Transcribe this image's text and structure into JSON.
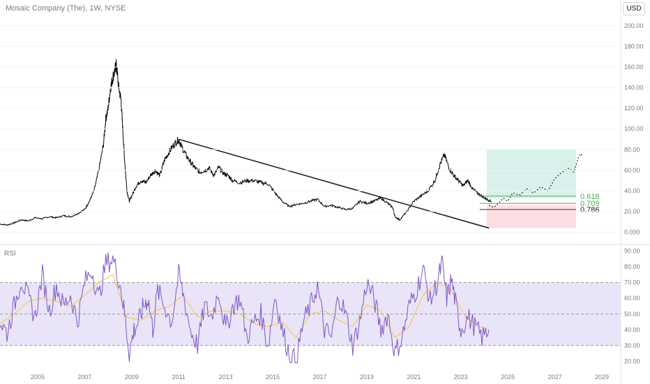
{
  "header": {
    "title": "Mosaic Company (The), 1W, NYSE",
    "currency_button": "USD"
  },
  "rsi_panel": {
    "label": "RSI"
  },
  "fib_labels": [
    "0.618",
    "0.709",
    "0.786"
  ],
  "colors": {
    "price_line": "#000000",
    "trend_line": "#222222",
    "rsi_line": "#7e57c2",
    "rsi_ma": "#f5c542",
    "rsi_band": "#e9e4f7",
    "target_zone": "#d8f1ea",
    "stop_zone": "#fbdde2",
    "fib_line": "#4caf50",
    "fib_text": "#4caf50"
  },
  "chart_data": [
    {
      "type": "line",
      "title": "Mosaic Company (The), 1W, NYSE",
      "x_tick_labels": [
        "2005",
        "2007",
        "2009",
        "2011",
        "2013",
        "2015",
        "2017",
        "2019",
        "2021",
        "2023",
        "2025",
        "2027",
        "2029"
      ],
      "y_tick_labels": [
        "0.000",
        "20.00",
        "40.00",
        "60.00",
        "80.00",
        "100.00",
        "120.00",
        "140.00",
        "160.00",
        "180.00",
        "200.00"
      ],
      "xlim": [
        2003.4,
        2029.8
      ],
      "ylim": [
        -5,
        208
      ],
      "series": [
        {
          "x": [
            2003.4,
            2003.7,
            2004.0,
            2004.3,
            2004.6,
            2004.9,
            2005.2,
            2005.5,
            2005.8,
            2006.1,
            2006.4,
            2006.7,
            2007.0,
            2007.2,
            2007.4,
            2007.6,
            2007.8,
            2007.9,
            2008.0,
            2008.1,
            2008.2,
            2008.3,
            2008.35,
            2008.45,
            2008.55,
            2008.62,
            2008.7,
            2008.8,
            2008.9,
            2009.0,
            2009.2,
            2009.4,
            2009.6,
            2009.8,
            2010.0,
            2010.2,
            2010.4,
            2010.6,
            2010.8,
            2011.0,
            2011.1,
            2011.3,
            2011.5,
            2011.7,
            2011.9,
            2012.1,
            2012.3,
            2012.5,
            2012.7,
            2012.9,
            2013.1,
            2013.3,
            2013.6,
            2013.9,
            2014.2,
            2014.5,
            2014.8,
            2015.1,
            2015.4,
            2015.7,
            2016.0,
            2016.3,
            2016.6,
            2016.9,
            2017.2,
            2017.5,
            2017.8,
            2018.1,
            2018.4,
            2018.7,
            2019.0,
            2019.3,
            2019.6,
            2019.9,
            2020.1,
            2020.2,
            2020.4,
            2020.7,
            2021.0,
            2021.3,
            2021.6,
            2021.9,
            2022.1,
            2022.3,
            2022.5,
            2022.7,
            2022.9,
            2023.1,
            2023.3,
            2023.5,
            2023.7,
            2023.9,
            2024.1,
            2024.3
          ],
          "y": [
            8,
            7,
            9,
            12,
            11,
            14,
            13,
            15,
            14,
            16,
            15,
            18,
            22,
            30,
            40,
            60,
            85,
            110,
            120,
            140,
            150,
            158,
            162,
            140,
            128,
            100,
            70,
            40,
            30,
            35,
            45,
            50,
            48,
            55,
            60,
            55,
            70,
            78,
            85,
            90,
            84,
            75,
            68,
            62,
            58,
            60,
            62,
            55,
            63,
            57,
            55,
            50,
            48,
            50,
            50,
            48,
            47,
            38,
            30,
            25,
            27,
            28,
            30,
            32,
            25,
            26,
            24,
            22,
            23,
            30,
            28,
            30,
            33,
            28,
            24,
            15,
            12,
            20,
            30,
            35,
            40,
            50,
            65,
            75,
            62,
            55,
            50,
            45,
            50,
            42,
            38,
            35,
            32,
            30
          ]
        }
      ],
      "annotations": {
        "trendline": {
          "x": [
            2011.0,
            2024.2
          ],
          "y": [
            90,
            4
          ]
        },
        "projection": {
          "x": [
            2024.2,
            2024.4,
            2024.6,
            2024.8,
            2025.0,
            2025.2,
            2025.5,
            2025.8,
            2026.1,
            2026.4,
            2026.7,
            2027.0,
            2027.3,
            2027.6,
            2027.8,
            2028.0,
            2028.1,
            2028.2
          ],
          "y": [
            26,
            24,
            28,
            33,
            30,
            38,
            36,
            42,
            38,
            44,
            40,
            52,
            58,
            62,
            58,
            72,
            76,
            74
          ]
        },
        "target_zone": {
          "x": [
            2024.1,
            2027.9
          ],
          "y": [
            33,
            80
          ]
        },
        "stop_zone": {
          "x": [
            2024.1,
            2027.9
          ],
          "y": [
            4,
            26
          ]
        },
        "fib_levels": [
          {
            "label": "0.618",
            "y": 35
          },
          {
            "label": "0.709",
            "y": 28
          },
          {
            "label": "0.786",
            "y": 22
          }
        ]
      }
    },
    {
      "type": "line",
      "title": "RSI",
      "y_tick_labels": [
        "20.00",
        "30.00",
        "40.00",
        "50.00",
        "60.00",
        "70.00",
        "80.00",
        "90.00"
      ],
      "ylim": [
        18,
        92
      ],
      "band": [
        30,
        70
      ],
      "mid": 50,
      "series": [
        {
          "name": "RSI",
          "x": [
            2003.4,
            2003.7,
            2004.0,
            2004.3,
            2004.6,
            2004.9,
            2005.2,
            2005.5,
            2005.8,
            2006.1,
            2006.4,
            2006.7,
            2007.0,
            2007.3,
            2007.6,
            2007.9,
            2008.2,
            2008.5,
            2008.7,
            2008.9,
            2009.1,
            2009.3,
            2009.5,
            2009.7,
            2009.9,
            2010.1,
            2010.4,
            2010.7,
            2011.0,
            2011.2,
            2011.5,
            2011.8,
            2012.1,
            2012.4,
            2012.7,
            2013.0,
            2013.3,
            2013.6,
            2013.9,
            2014.2,
            2014.5,
            2014.8,
            2015.1,
            2015.4,
            2015.7,
            2016.0,
            2016.3,
            2016.6,
            2016.9,
            2017.2,
            2017.5,
            2017.8,
            2018.1,
            2018.4,
            2018.7,
            2019.0,
            2019.3,
            2019.6,
            2019.9,
            2020.2,
            2020.5,
            2020.8,
            2021.1,
            2021.4,
            2021.7,
            2022.0,
            2022.2,
            2022.4,
            2022.6,
            2022.8,
            2023.0,
            2023.3,
            2023.6,
            2023.9,
            2024.2
          ],
          "y": [
            45,
            38,
            55,
            72,
            60,
            48,
            75,
            52,
            68,
            55,
            62,
            45,
            70,
            78,
            60,
            82,
            85,
            70,
            50,
            25,
            40,
            45,
            55,
            60,
            40,
            65,
            55,
            45,
            75,
            62,
            40,
            30,
            55,
            48,
            65,
            40,
            55,
            60,
            35,
            45,
            50,
            30,
            62,
            40,
            25,
            20,
            45,
            55,
            68,
            40,
            35,
            62,
            50,
            30,
            45,
            70,
            60,
            40,
            50,
            25,
            35,
            55,
            65,
            78,
            58,
            70,
            82,
            60,
            72,
            55,
            40,
            48,
            42,
            35,
            40
          ]
        },
        {
          "name": "RSI MA",
          "x": [
            2003.4,
            2004.0,
            2004.6,
            2005.2,
            2005.8,
            2006.4,
            2007.0,
            2007.6,
            2008.2,
            2008.8,
            2009.4,
            2010.0,
            2010.6,
            2011.2,
            2011.8,
            2012.4,
            2013.0,
            2013.6,
            2014.2,
            2014.8,
            2015.4,
            2016.0,
            2016.6,
            2017.2,
            2017.8,
            2018.4,
            2019.0,
            2019.6,
            2020.2,
            2020.8,
            2021.4,
            2022.0,
            2022.6,
            2023.2,
            2023.8,
            2024.2
          ],
          "y": [
            44,
            50,
            58,
            60,
            58,
            55,
            62,
            70,
            75,
            48,
            46,
            52,
            55,
            62,
            48,
            52,
            52,
            50,
            44,
            42,
            45,
            35,
            50,
            52,
            46,
            42,
            56,
            52,
            35,
            42,
            62,
            70,
            65,
            48,
            42,
            40
          ]
        }
      ]
    }
  ]
}
